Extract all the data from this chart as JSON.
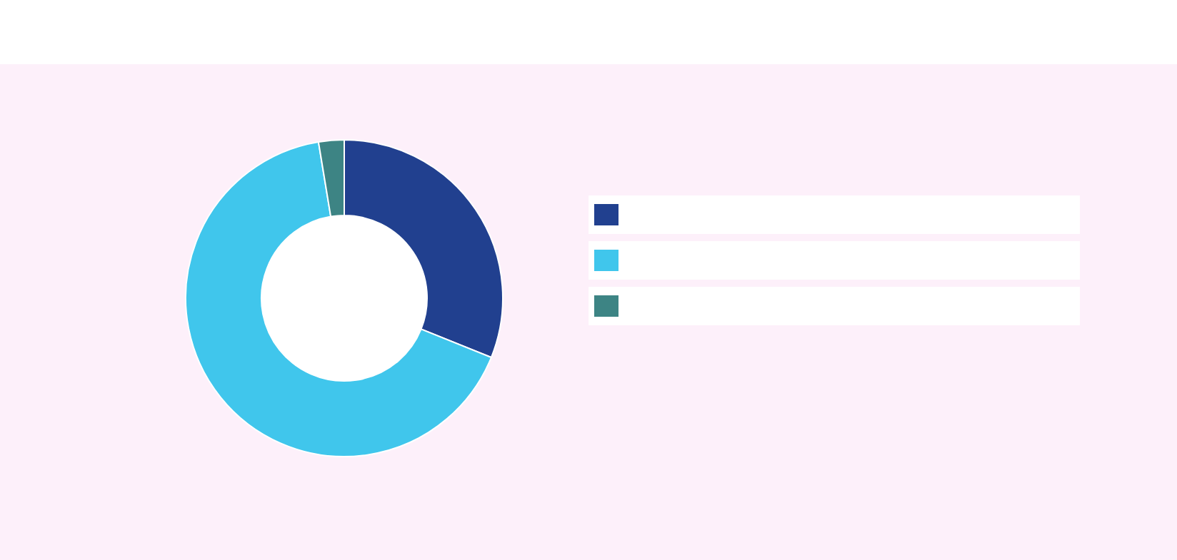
{
  "chart_data": {
    "type": "donut",
    "categories": [
      null,
      null,
      null
    ],
    "values": [
      31.1,
      66.3,
      2.6
    ],
    "colors": [
      "#21408f",
      "#40c6ec",
      "#3d8484"
    ]
  }
}
